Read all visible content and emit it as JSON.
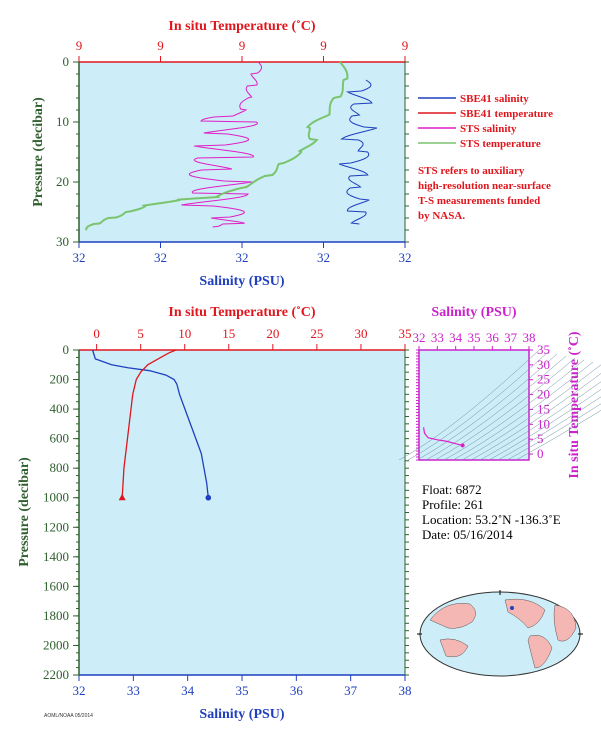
{
  "colors": {
    "salinity": "#1f3fbf",
    "temperature": "#e0161d",
    "sts_salinity": "#e01ec8",
    "sts_temperature": "#7ac46e",
    "plot_bg": "#cdeef8",
    "axis_green": "#2f5f2f",
    "ts_axis": "#cc22cc"
  },
  "chart_data": [
    {
      "type": "line",
      "panel": "top",
      "title_top": "In situ Temperature (˚C)",
      "xlabel": "Salinity (PSU)",
      "ylabel": "Pressure (decibar)",
      "x_ticks": [
        "32",
        "32",
        "32",
        "32",
        "32"
      ],
      "top_ticks": [
        "9",
        "9",
        "9",
        "9",
        "9"
      ],
      "y_ticks": [
        "0",
        "10",
        "20",
        "30"
      ],
      "ylim": [
        0,
        30
      ],
      "legend": [
        "SBE41 salinity",
        "SBE41 temperature",
        "STS salinity",
        "STS temperature"
      ],
      "note": [
        "STS refers to auxiliary",
        "high-resolution near-surface",
        "T-S measurements funded",
        "by NASA."
      ],
      "series": [
        {
          "name": "SBE41 salinity",
          "pressure": [
            3,
            5,
            7,
            9,
            11,
            13,
            15,
            17,
            19,
            21,
            23,
            25,
            27
          ],
          "x_frac": [
            0.88,
            0.85,
            0.87,
            0.84,
            0.89,
            0.83,
            0.88,
            0.82,
            0.86,
            0.84,
            0.87,
            0.85,
            0.86
          ]
        },
        {
          "name": "STS salinity",
          "pressure": [
            0,
            2,
            4,
            6,
            8,
            10,
            12,
            14,
            16,
            18,
            20,
            22,
            24,
            26,
            27.5
          ],
          "x_frac": [
            0.55,
            0.54,
            0.53,
            0.52,
            0.5,
            0.46,
            0.44,
            0.42,
            0.45,
            0.4,
            0.47,
            0.43,
            0.38,
            0.46,
            0.41
          ]
        },
        {
          "name": "STS temperature",
          "pressure": [
            0,
            3,
            6,
            9,
            11,
            13,
            15,
            17,
            19,
            21,
            22.5,
            23,
            24,
            25,
            26,
            27,
            28
          ],
          "x_frac": [
            0.8,
            0.82,
            0.79,
            0.76,
            0.7,
            0.72,
            0.68,
            0.62,
            0.58,
            0.5,
            0.42,
            0.3,
            0.2,
            0.15,
            0.1,
            0.05,
            0.02
          ]
        }
      ]
    },
    {
      "type": "line",
      "panel": "bottom",
      "title_top": "In situ Temperature (˚C)",
      "xlabel": "Salinity (PSU)",
      "ylabel": "Pressure (decibar)",
      "x_ticks": [
        "32",
        "33",
        "34",
        "35",
        "36",
        "37",
        "38"
      ],
      "xlim": [
        32,
        38
      ],
      "top_ticks": [
        "0",
        "5",
        "10",
        "15",
        "20",
        "25",
        "30",
        "35"
      ],
      "tlim": [
        -2,
        35
      ],
      "y_ticks": [
        "0",
        "200",
        "400",
        "600",
        "800",
        "1000",
        "1200",
        "1400",
        "1600",
        "1800",
        "2000",
        "2200"
      ],
      "ylim": [
        0,
        2200
      ],
      "series": [
        {
          "name": "salinity",
          "pressure": [
            0,
            60,
            100,
            120,
            140,
            170,
            200,
            230,
            300,
            400,
            500,
            600,
            700,
            800,
            900,
            1000
          ],
          "salinity": [
            32.25,
            32.3,
            32.6,
            32.9,
            33.3,
            33.6,
            33.75,
            33.8,
            33.85,
            33.95,
            34.05,
            34.15,
            34.25,
            34.3,
            34.35,
            34.38
          ]
        },
        {
          "name": "temperature",
          "pressure": [
            0,
            20,
            60,
            100,
            150,
            200,
            250,
            300,
            400,
            500,
            600,
            700,
            800,
            900,
            1000
          ],
          "temperature": [
            9.0,
            8.2,
            7.0,
            5.8,
            5.0,
            4.5,
            4.3,
            4.1,
            3.9,
            3.7,
            3.5,
            3.3,
            3.1,
            3.0,
            2.9
          ]
        }
      ]
    },
    {
      "type": "scatter",
      "panel": "ts",
      "title_top": "Salinity (PSU)",
      "ylabel": "In situ Temperature (˚C)",
      "x_ticks": [
        "32",
        "33",
        "34",
        "35",
        "36",
        "37",
        "38"
      ],
      "xlim": [
        32,
        38
      ],
      "y_ticks": [
        "0",
        "5",
        "10",
        "15",
        "20",
        "25",
        "30",
        "35"
      ],
      "ylim": [
        -2,
        35
      ],
      "series": [
        {
          "name": "profile",
          "salinity": [
            32.25,
            32.3,
            32.5,
            33.0,
            33.5,
            34.0,
            34.38
          ],
          "temperature": [
            9.0,
            7.0,
            5.5,
            4.8,
            4.3,
            3.5,
            2.9
          ]
        }
      ]
    }
  ],
  "info": {
    "float": "Float: 6872",
    "profile": "Profile: 261",
    "location": "Location: 53.2˚N -136.3˚E",
    "date": "Date: 05/16/2014"
  },
  "footer": "AOML/NOAA 05/2014"
}
